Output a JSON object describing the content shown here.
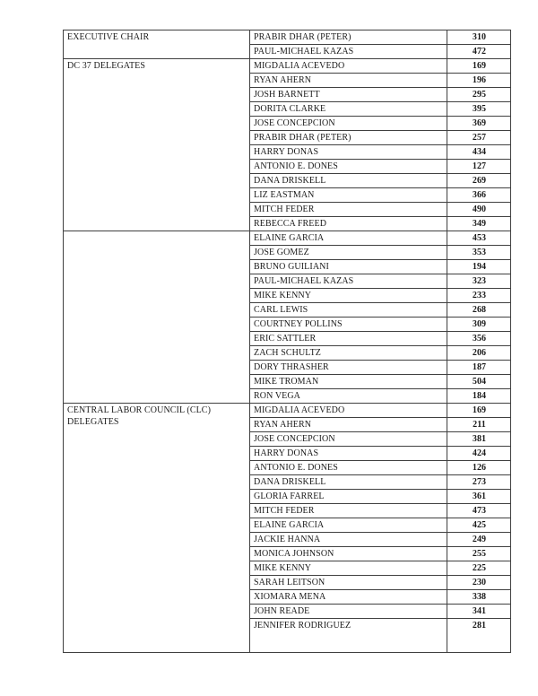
{
  "colors": {
    "background": "#ffffff",
    "border": "#404040",
    "text": "#1a1a1a"
  },
  "table": {
    "columns": [
      "position",
      "candidate",
      "votes"
    ],
    "sections": [
      {
        "label": "EXECUTIVE CHAIR",
        "rows": [
          {
            "name": "PRABIR DHAR (PETER)",
            "votes": "310"
          },
          {
            "name": "PAUL-MICHAEL KAZAS",
            "votes": "472"
          }
        ]
      },
      {
        "label": "DC 37 DELEGATES",
        "rows": [
          {
            "name": "MIGDALIA ACEVEDO",
            "votes": "169"
          },
          {
            "name": "RYAN AHERN",
            "votes": "196"
          },
          {
            "name": "JOSH BARNETT",
            "votes": "295"
          },
          {
            "name": "DORITA CLARKE",
            "votes": "395"
          },
          {
            "name": "JOSE CONCEPCION",
            "votes": "369"
          },
          {
            "name": "PRABIR DHAR (PETER)",
            "votes": "257"
          },
          {
            "name": "HARRY DONAS",
            "votes": "434"
          },
          {
            "name": "ANTONIO E. DONES",
            "votes": "127"
          },
          {
            "name": "DANA DRISKELL",
            "votes": "269"
          },
          {
            "name": "LIZ EASTMAN",
            "votes": "366"
          },
          {
            "name": "MITCH FEDER",
            "votes": "490"
          },
          {
            "name": "REBECCA FREED",
            "votes": "349"
          }
        ]
      },
      {
        "label": "",
        "rows": [
          {
            "name": "ELAINE GARCIA",
            "votes": "453"
          },
          {
            "name": "JOSE GOMEZ",
            "votes": "353"
          },
          {
            "name": "BRUNO GUILIANI",
            "votes": "194"
          },
          {
            "name": "PAUL-MICHAEL KAZAS",
            "votes": "323"
          },
          {
            "name": "MIKE KENNY",
            "votes": "233"
          },
          {
            "name": "CARL LEWIS",
            "votes": "268"
          },
          {
            "name": "COURTNEY POLLINS",
            "votes": "309"
          },
          {
            "name": "ERIC SATTLER",
            "votes": "356"
          },
          {
            "name": "ZACH SCHULTZ",
            "votes": "206"
          },
          {
            "name": "DORY THRASHER",
            "votes": "187"
          },
          {
            "name": "MIKE TROMAN",
            "votes": "504"
          },
          {
            "name": "RON VEGA",
            "votes": "184"
          }
        ]
      },
      {
        "label": "CENTRAL LABOR COUNCIL (CLC) DELEGATES",
        "rows": [
          {
            "name": "MIGDALIA ACEVEDO",
            "votes": "169"
          },
          {
            "name": "RYAN AHERN",
            "votes": "211"
          },
          {
            "name": "JOSE CONCEPCION",
            "votes": "381"
          },
          {
            "name": "HARRY DONAS",
            "votes": "424"
          },
          {
            "name": "ANTONIO E. DONES",
            "votes": "126"
          },
          {
            "name": "DANA DRISKELL",
            "votes": "273"
          },
          {
            "name": "GLORIA FARREL",
            "votes": "361"
          },
          {
            "name": "MITCH FEDER",
            "votes": "473"
          },
          {
            "name": "ELAINE GARCIA",
            "votes": "425"
          },
          {
            "name": "JACKIE HANNA",
            "votes": "249"
          },
          {
            "name": "MONICA JOHNSON",
            "votes": "255"
          },
          {
            "name": "MIKE KENNY",
            "votes": "225"
          },
          {
            "name": "SARAH LEITSON",
            "votes": "230"
          },
          {
            "name": "XIOMARA MENA",
            "votes": "338"
          },
          {
            "name": "JOHN READE",
            "votes": "341"
          },
          {
            "name": "JENNIFER RODRIGUEZ",
            "votes": "281"
          }
        ]
      }
    ]
  }
}
